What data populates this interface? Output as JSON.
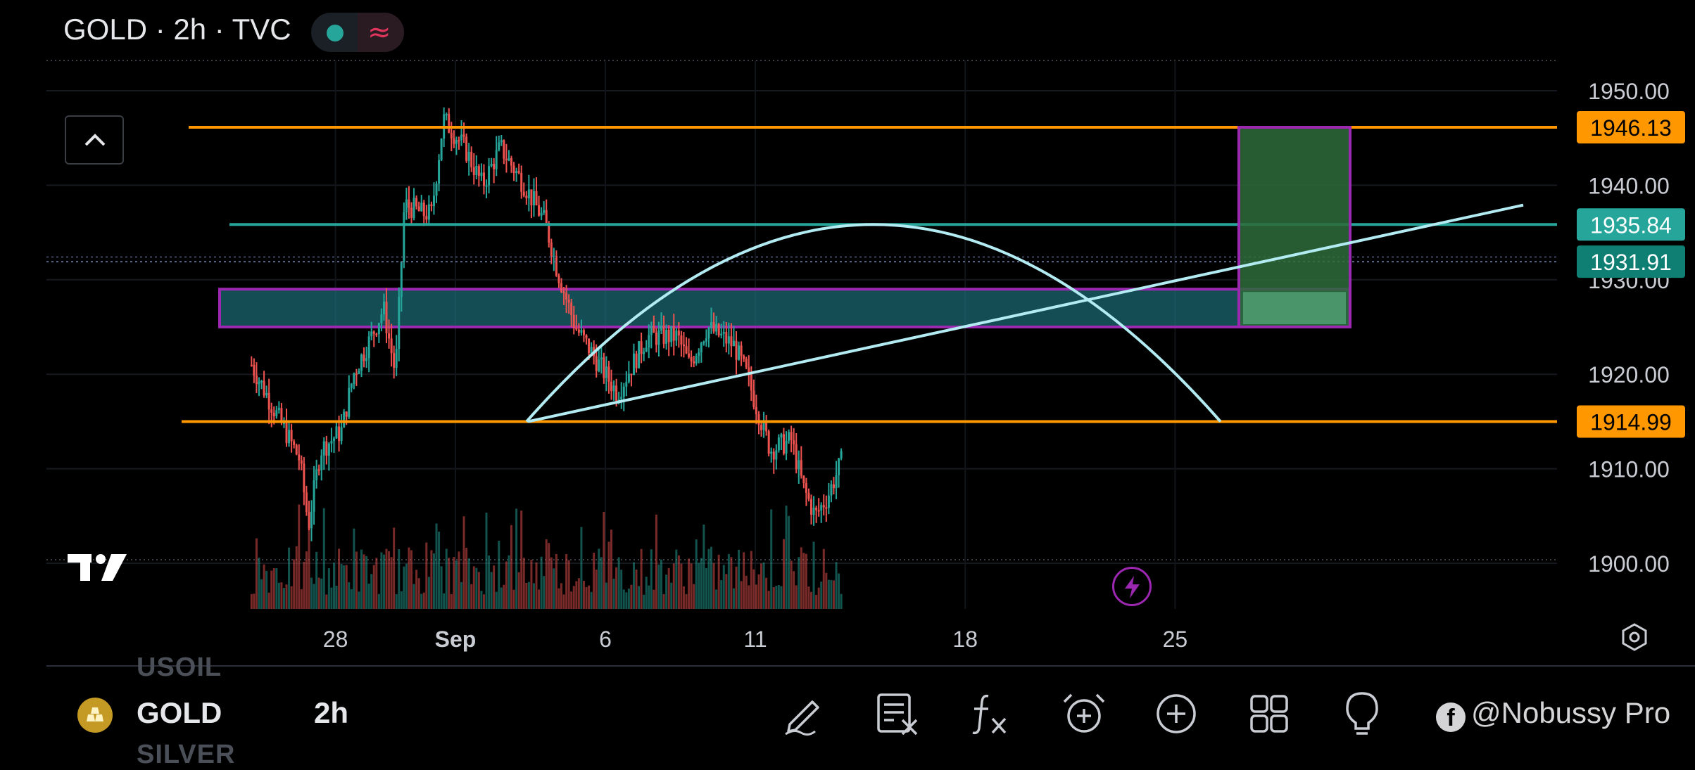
{
  "header": {
    "title": "GOLD · 2h · TVC",
    "chip_dot_color": "#26a69a",
    "chip_icon": "≈"
  },
  "colors": {
    "up": "#26a69a",
    "down": "#ef5350",
    "orange": "#ff9800",
    "teal_line": "#26a69a",
    "zone_fill": "#1e6e78",
    "zone_border": "#9c27b0",
    "trend_line": "#b2ebf2",
    "grid": "#2a2e39"
  },
  "price_axis": {
    "ticks": [
      "1950.00",
      "1940.00",
      "1930.00",
      "1920.00",
      "1910.00",
      "1900.00"
    ],
    "tick_values": [
      1950,
      1940,
      1930,
      1920,
      1910,
      1900
    ],
    "badges": [
      {
        "label": "1946.13",
        "value": 1946.13,
        "color": "#ff9800",
        "text_color": "#000000"
      },
      {
        "label": "1935.84",
        "value": 1935.84,
        "color": "#26a69a",
        "text_color": "#ffffff"
      },
      {
        "label": "1931.91",
        "value": 1931.91,
        "color": "#0e7f72",
        "text_color": "#ffffff"
      },
      {
        "label": "1914.99",
        "value": 1914.99,
        "color": "#ff9800",
        "text_color": "#000000"
      }
    ]
  },
  "time_axis": {
    "labels": [
      "28",
      "Sep",
      "6",
      "11",
      "18",
      "25"
    ],
    "label_positions_days": [
      28,
      32,
      37,
      42,
      49,
      56
    ]
  },
  "chart_data": {
    "type": "candlestick",
    "symbol": "GOLD",
    "interval": "2h",
    "source": "TVC",
    "ylim": [
      1895,
      1955
    ],
    "x_unit": "days from Aug 1",
    "xlim": [
      25.2,
      44.5
    ],
    "anchors": [
      [
        25.2,
        1921
      ],
      [
        26.0,
        1916
      ],
      [
        26.8,
        1911
      ],
      [
        27.1,
        1904
      ],
      [
        27.5,
        1912
      ],
      [
        28.2,
        1914
      ],
      [
        28.6,
        1920
      ],
      [
        29.2,
        1924
      ],
      [
        29.6,
        1927
      ],
      [
        30.0,
        1920
      ],
      [
        30.3,
        1938
      ],
      [
        30.9,
        1937
      ],
      [
        31.2,
        1937
      ],
      [
        31.6,
        1947
      ],
      [
        32.3,
        1944
      ],
      [
        32.9,
        1940
      ],
      [
        33.5,
        1944
      ],
      [
        34.3,
        1940
      ],
      [
        35.0,
        1936
      ],
      [
        35.4,
        1931
      ],
      [
        36.0,
        1925
      ],
      [
        36.6,
        1922
      ],
      [
        37.4,
        1918
      ],
      [
        38.4,
        1924
      ],
      [
        39.4,
        1924
      ],
      [
        39.8,
        1921
      ],
      [
        40.4,
        1925
      ],
      [
        41.3,
        1923
      ],
      [
        41.7,
        1920
      ],
      [
        42.5,
        1912
      ],
      [
        43.2,
        1913
      ],
      [
        43.6,
        1908
      ],
      [
        44.0,
        1905
      ],
      [
        44.4,
        1907
      ],
      [
        44.9,
        1911
      ]
    ],
    "volume_note": "volume histogram at bottom in matching up/down colors"
  },
  "drawings": {
    "resistance_upper": 1946.13,
    "resistance_mid": 1935.84,
    "support_lower": 1914.99,
    "zone": {
      "top": 1929.0,
      "bottom": 1925.0
    },
    "position_box": {
      "top": 1946.13,
      "bottom": 1925.0
    },
    "arc": "parabolic arc from 1914.99 peaking near 1935.84",
    "trendline": "rising line from ~1914.99 to ~1938"
  },
  "bottom_bar": {
    "prev_symbol_ghost": "USOIL",
    "symbol": "GOLD",
    "timeframe": "2h",
    "next_symbol_ghost": "SILVER",
    "tools": [
      {
        "name": "draw-tool",
        "icon": "pencil-icon"
      },
      {
        "name": "remove-drawings",
        "icon": "list-x-icon"
      },
      {
        "name": "indicators",
        "icon": "fx-icon"
      },
      {
        "name": "alert",
        "icon": "alarm-add-icon"
      },
      {
        "name": "add",
        "icon": "plus-circle-icon"
      },
      {
        "name": "layouts",
        "icon": "grid-icon"
      },
      {
        "name": "ideas",
        "icon": "lightbulb-icon"
      }
    ],
    "watermark": "@Nobussy Pro"
  }
}
